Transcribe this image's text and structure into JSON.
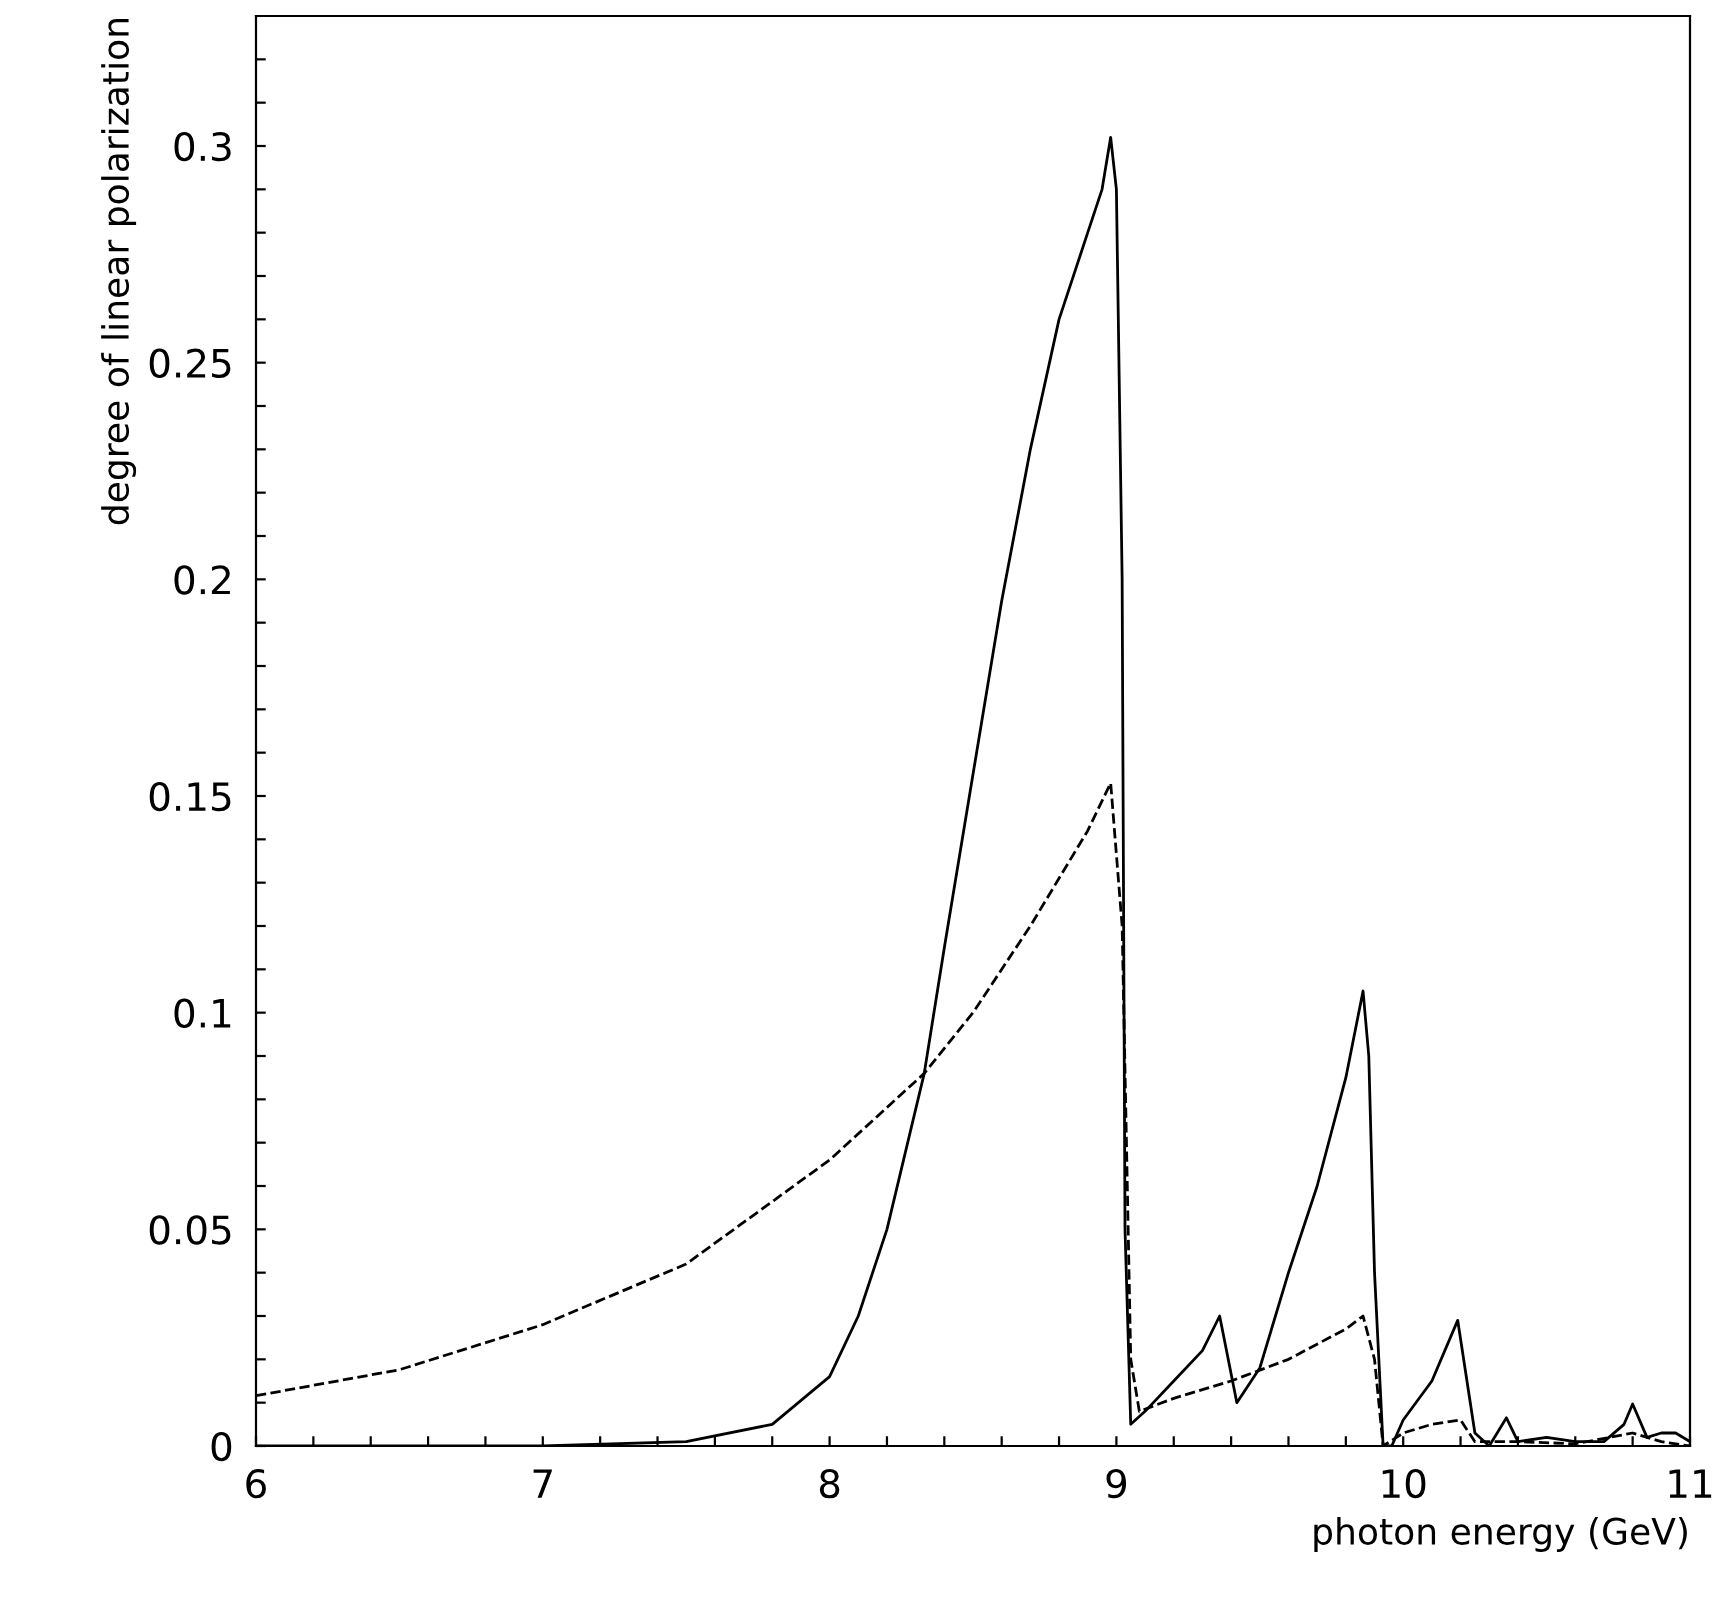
{
  "chart_data": {
    "type": "line",
    "xlabel": "photon energy (GeV)",
    "ylabel": "degree of linear polarization",
    "xlim": [
      6,
      11
    ],
    "ylim": [
      0,
      0.33
    ],
    "xticks": [
      6,
      {
        "value": 6.2,
        "label": null
      },
      {
        "value": 6.4,
        "label": null
      },
      {
        "value": 6.6,
        "label": null
      },
      {
        "value": 6.8,
        "label": null
      },
      7,
      {
        "value": 7.2,
        "label": null
      },
      {
        "value": 7.4,
        "label": null
      },
      {
        "value": 7.6,
        "label": null
      },
      {
        "value": 7.8,
        "label": null
      },
      8,
      {
        "value": 8.2,
        "label": null
      },
      {
        "value": 8.4,
        "label": null
      },
      {
        "value": 8.6,
        "label": null
      },
      {
        "value": 8.8,
        "label": null
      },
      9,
      {
        "value": 9.2,
        "label": null
      },
      {
        "value": 9.4,
        "label": null
      },
      {
        "value": 9.6,
        "label": null
      },
      {
        "value": 9.8,
        "label": null
      },
      10,
      {
        "value": 10.2,
        "label": null
      },
      {
        "value": 10.4,
        "label": null
      },
      {
        "value": 10.6,
        "label": null
      },
      {
        "value": 10.8,
        "label": null
      },
      11
    ],
    "yticks": [
      0,
      {
        "value": 0.01,
        "label": null
      },
      {
        "value": 0.02,
        "label": null
      },
      {
        "value": 0.03,
        "label": null
      },
      {
        "value": 0.04,
        "label": null
      },
      0.05,
      {
        "value": 0.06,
        "label": null
      },
      {
        "value": 0.07,
        "label": null
      },
      {
        "value": 0.08,
        "label": null
      },
      {
        "value": 0.09,
        "label": null
      },
      0.1,
      {
        "value": 0.11,
        "label": null
      },
      {
        "value": 0.12,
        "label": null
      },
      {
        "value": 0.13,
        "label": null
      },
      {
        "value": 0.14,
        "label": null
      },
      0.15,
      {
        "value": 0.16,
        "label": null
      },
      {
        "value": 0.17,
        "label": null
      },
      {
        "value": 0.18,
        "label": null
      },
      {
        "value": 0.19,
        "label": null
      },
      0.2,
      {
        "value": 0.21,
        "label": null
      },
      {
        "value": 0.22,
        "label": null
      },
      {
        "value": 0.23,
        "label": null
      },
      {
        "value": 0.24,
        "label": null
      },
      0.25,
      {
        "value": 0.26,
        "label": null
      },
      {
        "value": 0.27,
        "label": null
      },
      {
        "value": 0.28,
        "label": null
      },
      {
        "value": 0.29,
        "label": null
      },
      0.3,
      {
        "value": 0.31,
        "label": null
      },
      {
        "value": 0.32,
        "label": null
      }
    ],
    "grid": false,
    "legend": false,
    "marker": "none",
    "series": [
      {
        "color": "#000000",
        "line_style": "solid",
        "x": [
          6,
          7,
          7.5,
          7.8,
          8.0,
          8.1,
          8.2,
          8.33,
          8.4,
          8.5,
          8.6,
          8.7,
          8.8,
          8.9,
          8.95,
          8.98,
          9.0,
          9.02,
          9.03,
          9.05,
          9.1,
          9.2,
          9.3,
          9.36,
          9.42,
          9.5,
          9.6,
          9.7,
          9.8,
          9.86,
          9.88,
          9.9,
          9.93,
          9.96,
          10.0,
          10.1,
          10.19,
          10.25,
          10.3,
          10.36,
          10.4,
          10.5,
          10.6,
          10.7,
          10.77,
          10.8,
          10.85,
          10.9,
          10.95,
          11
        ],
        "values": [
          0,
          0,
          0.001,
          0.005,
          0.016,
          0.03,
          0.05,
          0.086,
          0.115,
          0.155,
          0.195,
          0.23,
          0.26,
          0.28,
          0.29,
          0.302,
          0.29,
          0.2,
          0.05,
          0.005,
          0.008,
          0.015,
          0.022,
          0.03,
          0.01,
          0.018,
          0.04,
          0.06,
          0.085,
          0.105,
          0.09,
          0.04,
          0,
          0,
          0.006,
          0.015,
          0.029,
          0.003,
          0,
          0.0065,
          0.001,
          0.002,
          0.001,
          0.001,
          0.005,
          0.0097,
          0.002,
          0.003,
          0.003,
          0.001
        ]
      },
      {
        "color": "#000000",
        "line_style": "dashed",
        "x": [
          6,
          6.5,
          7,
          7.5,
          8,
          8.33,
          8.5,
          8.7,
          8.9,
          8.98,
          9.02,
          9.05,
          9.08,
          9.2,
          9.4,
          9.6,
          9.8,
          9.86,
          9.9,
          9.93,
          10.0,
          10.1,
          10.2,
          10.25,
          10.4,
          10.6,
          10.8,
          10.9,
          11
        ],
        "values": [
          0.0116,
          0.0176,
          0.028,
          0.042,
          0.066,
          0.086,
          0.1,
          0.12,
          0.142,
          0.153,
          0.12,
          0.02,
          0.008,
          0.011,
          0.015,
          0.02,
          0.027,
          0.03,
          0.02,
          0,
          0.003,
          0.005,
          0.006,
          0.001,
          0.001,
          0.0005,
          0.003,
          0.001,
          0
        ]
      }
    ]
  }
}
